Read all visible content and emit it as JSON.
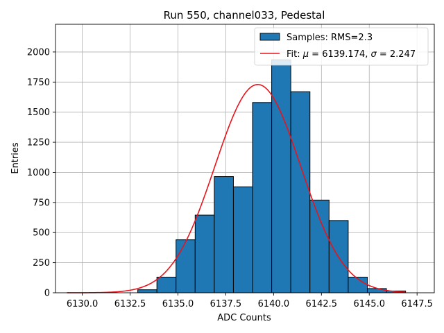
{
  "chart_data": {
    "type": "bar",
    "title": "Run 550, channel033, Pedestal",
    "xlabel": "ADC Counts",
    "ylabel": "Entries",
    "xlim": [
      6128.6,
      6148.4
    ],
    "ylim": [
      0,
      2230
    ],
    "grid": true,
    "legend_position": "top-right",
    "x_ticks": [
      6130.0,
      6132.5,
      6135.0,
      6137.5,
      6140.0,
      6142.5,
      6145.0,
      6147.5
    ],
    "x_tick_labels": [
      "6130.0",
      "6132.5",
      "6135.0",
      "6137.5",
      "6140.0",
      "6142.5",
      "6145.0",
      "6147.5"
    ],
    "y_ticks": [
      0,
      250,
      500,
      750,
      1000,
      1250,
      1500,
      1750,
      2000
    ],
    "y_tick_labels": [
      "0",
      "250",
      "500",
      "750",
      "1000",
      "1250",
      "1500",
      "1750",
      "2000"
    ],
    "histogram": {
      "name": "Samples: RMS=2.3",
      "color": "#1f77b4",
      "edge_color": "#000000",
      "bins": [
        {
          "x0": 6132.9,
          "x1": 6133.9,
          "count": 25
        },
        {
          "x0": 6133.9,
          "x1": 6134.9,
          "count": 130
        },
        {
          "x0": 6134.9,
          "x1": 6135.9,
          "count": 440
        },
        {
          "x0": 6135.9,
          "x1": 6136.9,
          "count": 645
        },
        {
          "x0": 6136.9,
          "x1": 6137.9,
          "count": 965
        },
        {
          "x0": 6137.9,
          "x1": 6138.9,
          "count": 880
        },
        {
          "x0": 6138.9,
          "x1": 6139.9,
          "count": 1580
        },
        {
          "x0": 6139.9,
          "x1": 6140.9,
          "count": 1935
        },
        {
          "x0": 6140.9,
          "x1": 6141.9,
          "count": 1670
        },
        {
          "x0": 6141.9,
          "x1": 6142.9,
          "count": 770
        },
        {
          "x0": 6142.9,
          "x1": 6143.9,
          "count": 600
        },
        {
          "x0": 6143.9,
          "x1": 6144.9,
          "count": 130
        },
        {
          "x0": 6144.9,
          "x1": 6145.9,
          "count": 35
        },
        {
          "x0": 6145.9,
          "x1": 6146.9,
          "count": 15
        }
      ]
    },
    "fit": {
      "name": "Fit: μ = 6139.174, σ = 2.247",
      "name_prefix": "Fit: ",
      "mu_symbol": "μ",
      "mu_text": " = 6139.174, ",
      "sigma_symbol": "σ",
      "sigma_text": " = 2.247",
      "color": "#e8141c",
      "mu": 6139.174,
      "sigma": 2.247,
      "amplitude": 1730,
      "x_range": [
        6129.2,
        6146.9
      ]
    }
  }
}
